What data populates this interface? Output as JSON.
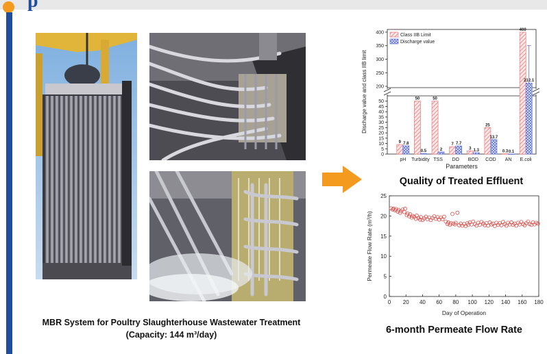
{
  "slide": {
    "left_caption_line1": "MBR System for Poultry Slaughterhouse Wastewater Treatment",
    "left_caption_line2": "(Capacity: 144 m³/day)",
    "effluent_caption": "Quality of Treated Effluent",
    "flow_caption": "6-month Permeate Flow Rate",
    "accent_color": "#f39a1f",
    "brand_color": "#1f4e9e"
  },
  "chart_data": [
    {
      "type": "bar",
      "title": "",
      "xlabel": "Parameters",
      "ylabel": "Discharge value and class IIB limit",
      "categories": [
        "pH",
        "Turbidity",
        "TSS",
        "DO",
        "BOD",
        "COD",
        "AN",
        "E.coli"
      ],
      "series": [
        {
          "name": "Class IIB Limit",
          "values": [
            9,
            50,
            50,
            7,
            3,
            25,
            0.3,
            400
          ],
          "labels": [
            "9",
            "50",
            "50",
            "7",
            "3",
            "25",
            "0.3",
            "400"
          ],
          "color": "#e8787a",
          "pattern": "diagonal"
        },
        {
          "name": "Discharge value",
          "values": [
            7.8,
            0.5,
            2,
            7.7,
            1.3,
            13.7,
            0.1,
            212.1
          ],
          "labels": [
            "7.8",
            "0.5",
            "2",
            "7.7",
            "1.3",
            "13.7",
            "0.1",
            "212.1"
          ],
          "color": "#5a6ed8",
          "pattern": "crosshatch"
        }
      ],
      "axis_break": true,
      "lower_ticks": [
        0,
        5,
        10,
        15,
        20,
        25,
        30,
        35,
        40,
        45,
        50
      ],
      "upper_ticks": [
        200,
        250,
        300,
        350,
        400
      ],
      "lower_range": [
        0,
        55
      ],
      "upper_range": [
        195,
        410
      ],
      "legend": "top-left",
      "grid": false
    },
    {
      "type": "scatter",
      "xlabel": "Day of Operation",
      "ylabel": "Permeate Flow Rate (m³/h)",
      "xlim": [
        0,
        180
      ],
      "ylim": [
        0,
        25
      ],
      "xticks": [
        0,
        20,
        40,
        60,
        80,
        100,
        120,
        140,
        160,
        180
      ],
      "yticks": [
        0,
        5,
        10,
        15,
        20,
        25
      ],
      "marker": "open-circle",
      "color": "#d9534f",
      "grid": false,
      "points": [
        [
          2,
          21.9
        ],
        [
          4,
          21.6
        ],
        [
          5,
          21.8
        ],
        [
          7,
          21.4
        ],
        [
          8,
          21.7
        ],
        [
          10,
          21.1
        ],
        [
          11,
          21.5
        ],
        [
          13,
          20.8
        ],
        [
          14,
          21.2
        ],
        [
          16,
          21.6
        ],
        [
          18,
          21.0
        ],
        [
          19,
          21.8
        ],
        [
          21,
          20.2
        ],
        [
          22,
          20.6
        ],
        [
          24,
          19.9
        ],
        [
          25,
          20.4
        ],
        [
          27,
          19.6
        ],
        [
          28,
          20.0
        ],
        [
          30,
          19.8
        ],
        [
          32,
          19.3
        ],
        [
          33,
          20.1
        ],
        [
          35,
          19.5
        ],
        [
          37,
          19.1
        ],
        [
          38,
          19.7
        ],
        [
          40,
          19.0
        ],
        [
          42,
          19.4
        ],
        [
          44,
          19.8
        ],
        [
          46,
          19.2
        ],
        [
          48,
          19.6
        ],
        [
          50,
          19.0
        ],
        [
          52,
          19.5
        ],
        [
          54,
          19.9
        ],
        [
          56,
          19.3
        ],
        [
          58,
          19.7
        ],
        [
          60,
          19.1
        ],
        [
          62,
          19.6
        ],
        [
          64,
          19.2
        ],
        [
          66,
          19.8
        ],
        [
          68,
          18.6
        ],
        [
          70,
          18.0
        ],
        [
          71,
          18.4
        ],
        [
          73,
          17.8
        ],
        [
          74,
          18.2
        ],
        [
          76,
          20.5
        ],
        [
          77,
          18.1
        ],
        [
          79,
          17.9
        ],
        [
          80,
          18.3
        ],
        [
          82,
          20.8
        ],
        [
          84,
          17.7
        ],
        [
          86,
          18.1
        ],
        [
          88,
          17.6
        ],
        [
          90,
          18.0
        ],
        [
          92,
          17.5
        ],
        [
          94,
          18.2
        ],
        [
          95,
          17.8
        ],
        [
          97,
          18.4
        ],
        [
          99,
          17.9
        ],
        [
          101,
          18.6
        ],
        [
          103,
          18.0
        ],
        [
          105,
          17.6
        ],
        [
          107,
          18.3
        ],
        [
          109,
          17.8
        ],
        [
          111,
          18.5
        ],
        [
          113,
          18.1
        ],
        [
          115,
          17.7
        ],
        [
          117,
          18.2
        ],
        [
          119,
          17.6
        ],
        [
          121,
          18.4
        ],
        [
          123,
          17.9
        ],
        [
          125,
          18.1
        ],
        [
          127,
          17.5
        ],
        [
          129,
          18.3
        ],
        [
          131,
          17.8
        ],
        [
          133,
          18.2
        ],
        [
          135,
          17.7
        ],
        [
          137,
          18.5
        ],
        [
          139,
          18.0
        ],
        [
          141,
          17.6
        ],
        [
          143,
          18.3
        ],
        [
          145,
          17.9
        ],
        [
          147,
          18.4
        ],
        [
          149,
          17.8
        ],
        [
          151,
          18.1
        ],
        [
          153,
          17.6
        ],
        [
          155,
          18.3
        ],
        [
          157,
          17.9
        ],
        [
          159,
          18.5
        ],
        [
          161,
          18.0
        ],
        [
          163,
          17.7
        ],
        [
          165,
          18.2
        ],
        [
          167,
          18.6
        ],
        [
          169,
          18.0
        ],
        [
          171,
          17.8
        ],
        [
          173,
          18.4
        ],
        [
          175,
          17.9
        ],
        [
          177,
          18.3
        ],
        [
          179,
          18.1
        ]
      ]
    }
  ]
}
